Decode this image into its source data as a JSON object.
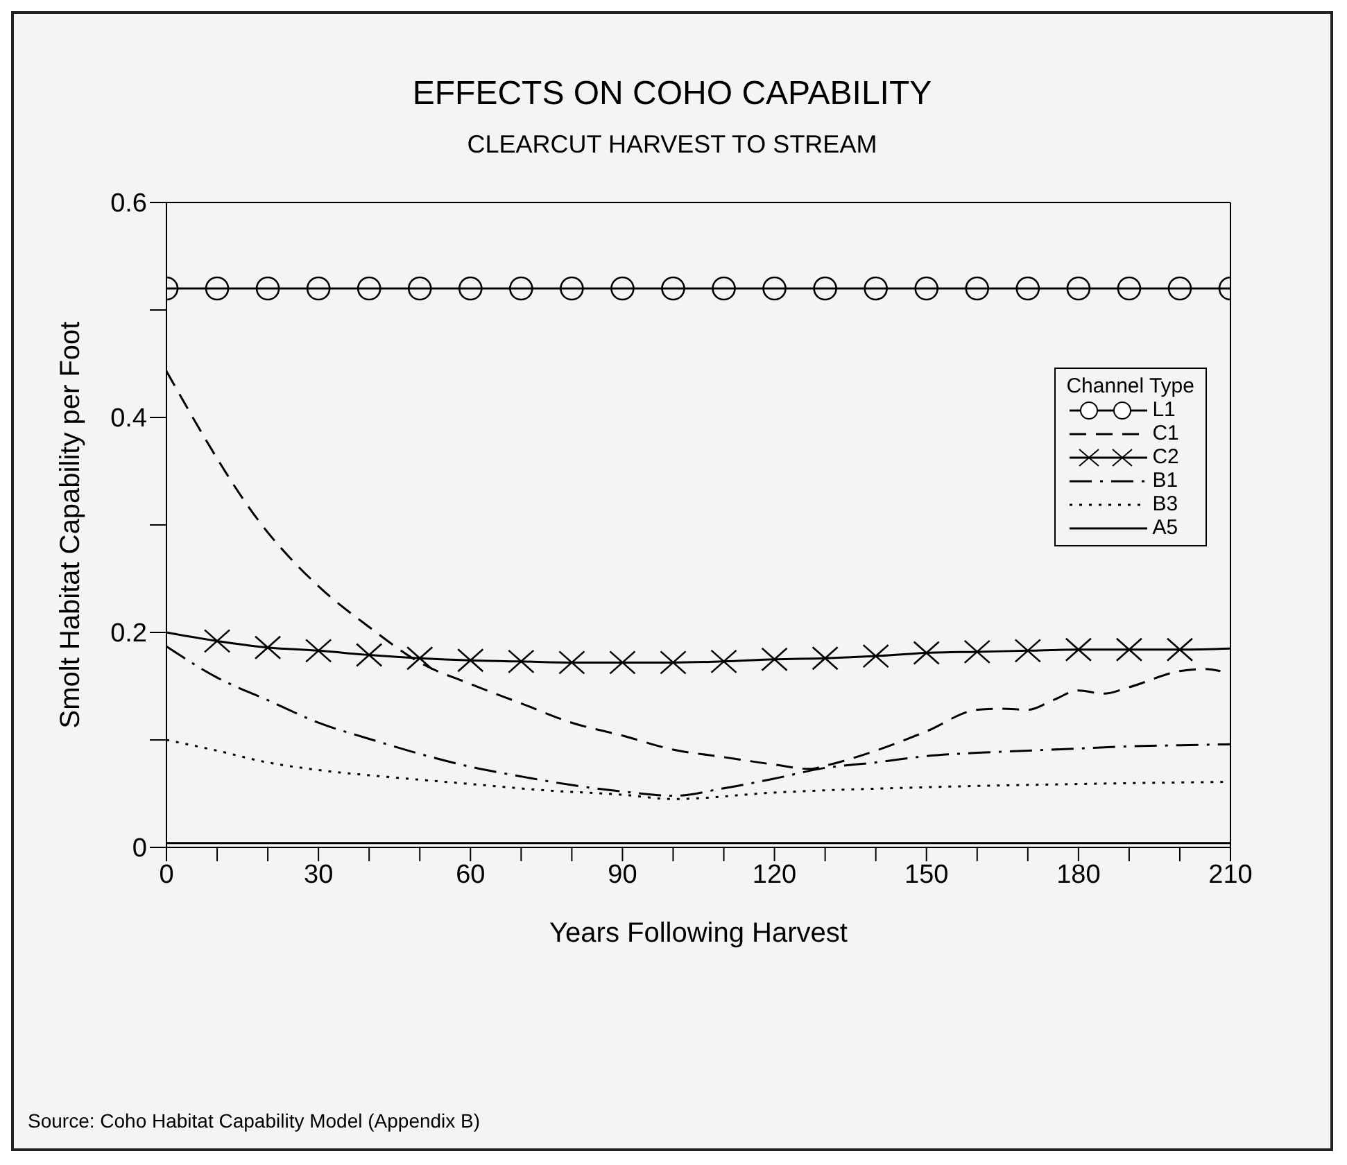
{
  "chart_data": {
    "type": "line",
    "title": "EFFECTS ON COHO CAPABILITY",
    "subtitle": "CLEARCUT HARVEST TO STREAM",
    "xlabel": "Years Following Harvest",
    "ylabel": "Smolt Habitat Capability per Foot",
    "legend_title": "Channel Type",
    "legend": "top right",
    "grid": false,
    "xlim": [
      0,
      210
    ],
    "ylim": [
      0,
      0.6
    ],
    "xticks": [
      0,
      {
        "value": 10,
        "label": null
      },
      {
        "value": 20,
        "label": null
      },
      30,
      {
        "value": 40,
        "label": null
      },
      {
        "value": 50,
        "label": null
      },
      60,
      {
        "value": 70,
        "label": null
      },
      {
        "value": 80,
        "label": null
      },
      90,
      {
        "value": 100,
        "label": null
      },
      {
        "value": 110,
        "label": null
      },
      120,
      {
        "value": 130,
        "label": null
      },
      {
        "value": 140,
        "label": null
      },
      150,
      {
        "value": 160,
        "label": null
      },
      {
        "value": 170,
        "label": null
      },
      180,
      {
        "value": 190,
        "label": null
      },
      {
        "value": 200,
        "label": null
      },
      210
    ],
    "yticks": [
      0,
      {
        "value": 0.1,
        "label": null
      },
      0.2,
      {
        "value": 0.3,
        "label": null
      },
      0.4,
      {
        "value": 0.5,
        "label": null
      },
      0.6
    ],
    "series": [
      {
        "name": "L1",
        "color": "#000000",
        "line_style": "solid",
        "marker": "circle",
        "x": [
          0,
          10,
          20,
          30,
          40,
          50,
          60,
          70,
          80,
          90,
          100,
          110,
          120,
          130,
          140,
          150,
          160,
          170,
          180,
          190,
          200,
          210
        ],
        "values": [
          0.52,
          0.52,
          0.52,
          0.52,
          0.52,
          0.52,
          0.52,
          0.52,
          0.52,
          0.52,
          0.52,
          0.52,
          0.52,
          0.52,
          0.52,
          0.52,
          0.52,
          0.52,
          0.52,
          0.52,
          0.52,
          0.52
        ]
      },
      {
        "name": "C1",
        "color": "#000000",
        "line_style": "dashed",
        "marker": "none",
        "x": [
          0,
          20,
          30,
          40,
          50,
          60,
          70,
          80,
          90,
          100,
          110,
          120,
          127,
          130,
          140,
          150,
          160,
          165,
          170,
          175,
          180,
          185,
          190,
          200,
          205,
          208
        ],
        "values": [
          0.443,
          0.293,
          0.243,
          0.205,
          0.172,
          0.152,
          0.134,
          0.116,
          0.104,
          0.091,
          0.084,
          0.077,
          0.073,
          0.076,
          0.09,
          0.108,
          0.128,
          0.129,
          0.128,
          0.137,
          0.146,
          0.143,
          0.149,
          0.164,
          0.166,
          0.164
        ]
      },
      {
        "name": "C2",
        "color": "#000000",
        "line_style": "solid",
        "marker": "cross",
        "x": [
          0,
          10,
          20,
          30,
          40,
          50,
          60,
          70,
          80,
          90,
          100,
          110,
          120,
          130,
          140,
          150,
          160,
          170,
          180,
          190,
          200,
          210
        ],
        "values": [
          0.2,
          0.192,
          0.186,
          0.183,
          0.179,
          0.176,
          0.174,
          0.173,
          0.172,
          0.172,
          0.172,
          0.173,
          0.175,
          0.176,
          0.178,
          0.181,
          0.182,
          0.183,
          0.184,
          0.184,
          0.184,
          0.185
        ]
      },
      {
        "name": "B1",
        "color": "#000000",
        "line_style": "dashdot",
        "marker": "none",
        "x": [
          0,
          10,
          20,
          30,
          40,
          50,
          60,
          70,
          80,
          90,
          100,
          110,
          120,
          130,
          140,
          150,
          160,
          170,
          180,
          190,
          200,
          210
        ],
        "values": [
          0.187,
          0.158,
          0.137,
          0.116,
          0.101,
          0.087,
          0.075,
          0.066,
          0.058,
          0.052,
          0.048,
          0.055,
          0.064,
          0.074,
          0.079,
          0.085,
          0.088,
          0.09,
          0.092,
          0.094,
          0.095,
          0.096
        ]
      },
      {
        "name": "B3",
        "color": "#000000",
        "line_style": "dotted",
        "marker": "none",
        "x": [
          0,
          10,
          20,
          30,
          45,
          60,
          75,
          90,
          100,
          120,
          150,
          180,
          210
        ],
        "values": [
          0.1,
          0.09,
          0.079,
          0.072,
          0.065,
          0.059,
          0.053,
          0.049,
          0.045,
          0.051,
          0.056,
          0.059,
          0.061
        ]
      },
      {
        "name": "A5",
        "color": "#000000",
        "line_style": "solid",
        "marker": "none",
        "x": [
          0,
          210
        ],
        "values": [
          0.004,
          0.004
        ]
      }
    ],
    "annotations": [
      "Source: Coho Habitat Capability Model (Appendix B)"
    ]
  }
}
